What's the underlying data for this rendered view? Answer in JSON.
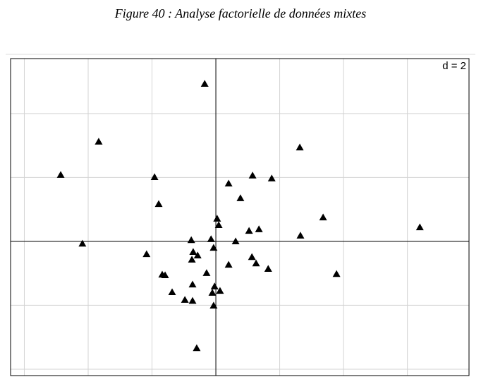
{
  "chart_data": {
    "type": "scatter",
    "title": "Figure 40 : Analyse factorielle de données mixtes",
    "annotation": "d = 2",
    "color": "#000000",
    "grid": true,
    "xlim": [
      -6.43,
      7.93
    ],
    "ylim": [
      -4.2,
      5.72
    ],
    "xticks": [
      -6,
      -4,
      -2,
      0,
      2,
      4,
      6
    ],
    "yticks": [
      -4,
      -2,
      0,
      2,
      4
    ],
    "x": [
      -0.35,
      -3.67,
      -4.86,
      -1.92,
      -1.79,
      2.63,
      1.15,
      1.75,
      0.4,
      0.77,
      3.36,
      6.39,
      0.04,
      0.09,
      1.04,
      1.35,
      2.65,
      0.62,
      -0.15,
      -0.77,
      -4.18,
      -0.07,
      -2.17,
      -0.71,
      -0.57,
      -0.75,
      1.13,
      1.26,
      0.4,
      1.64,
      3.78,
      -0.29,
      -1.68,
      -1.59,
      -0.73,
      -0.04,
      0.13,
      -0.11,
      -1.37,
      -0.97,
      -0.73,
      -0.07,
      -0.6
    ],
    "values": [
      4.93,
      3.12,
      2.08,
      2.01,
      1.17,
      2.94,
      2.06,
      1.97,
      1.81,
      1.35,
      0.75,
      0.44,
      0.71,
      0.51,
      0.33,
      0.38,
      0.18,
      0.0,
      0.07,
      0.04,
      -0.07,
      -0.2,
      -0.4,
      -0.33,
      -0.44,
      -0.57,
      -0.49,
      -0.69,
      -0.73,
      -0.86,
      -1.02,
      -0.99,
      -1.04,
      -1.06,
      -1.35,
      -1.41,
      -1.55,
      -1.61,
      -1.59,
      -1.83,
      -1.86,
      -2.01,
      -3.34
    ]
  }
}
